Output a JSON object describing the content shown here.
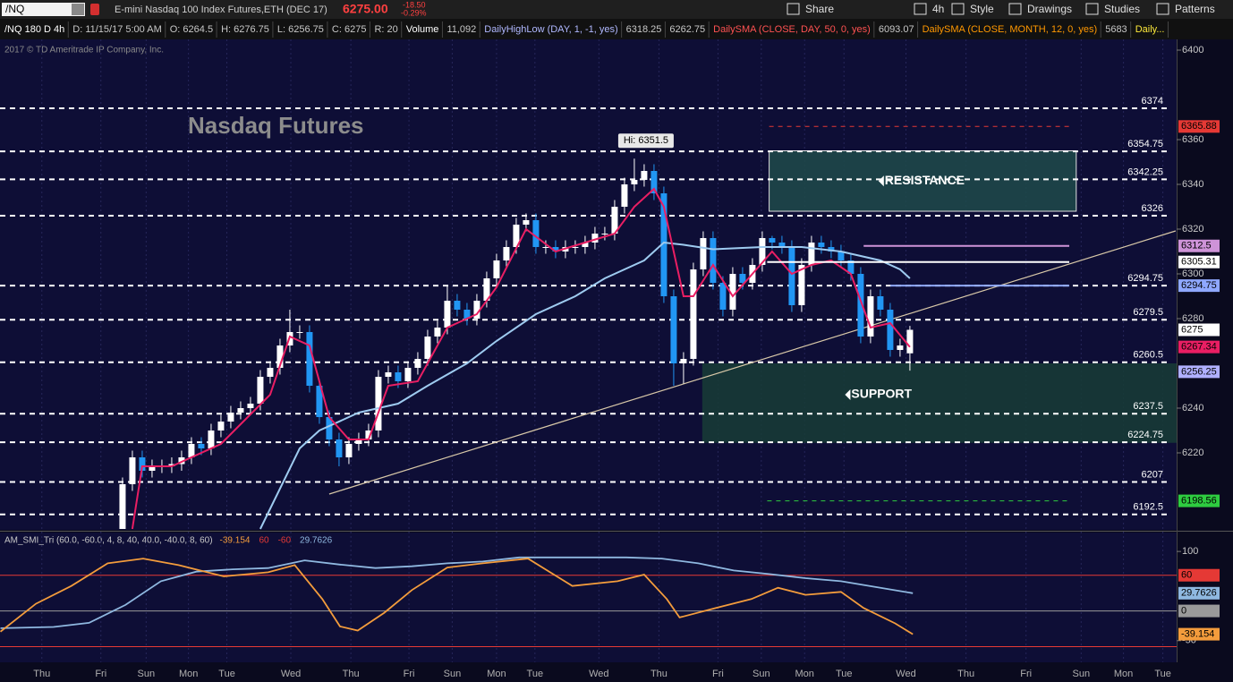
{
  "toolbar": {
    "symbol": "/NQ",
    "description": "E-mini Nasdaq 100 Index Futures,ETH (DEC 17)",
    "last": "6275.00",
    "change": "-18.50",
    "change_pct": "-0.29%",
    "buttons": [
      "Share",
      "4h",
      "Style",
      "Drawings",
      "Studies",
      "Patterns"
    ]
  },
  "legend_row": [
    {
      "text": "/NQ 180 D 4h",
      "color": "#ffffff"
    },
    {
      "text": "D: 11/15/17 5:00 AM",
      "color": "#c8c8c8"
    },
    {
      "text": "O: 6264.5",
      "color": "#c8c8c8"
    },
    {
      "text": "H: 6276.75",
      "color": "#c8c8c8"
    },
    {
      "text": "L: 6256.75",
      "color": "#c8c8c8"
    },
    {
      "text": "C: 6275",
      "color": "#c8c8c8"
    },
    {
      "text": "R: 20",
      "color": "#c8c8c8"
    },
    {
      "text": "Volume",
      "color": "#ffffff"
    },
    {
      "text": "11,092",
      "color": "#c8c8c8"
    },
    {
      "text": "DailyHighLow (DAY, 1, -1, yes)",
      "color": "#b0b8ff"
    },
    {
      "text": "6318.25",
      "color": "#c8c8c8"
    },
    {
      "text": "6262.75",
      "color": "#c8c8c8"
    },
    {
      "text": "DailySMA (CLOSE, DAY, 50, 0, yes)",
      "color": "#ff5252"
    },
    {
      "text": "6093.07",
      "color": "#c8c8c8"
    },
    {
      "text": "DailySMA (CLOSE, MONTH, 12, 0, yes)",
      "color": "#ff9800"
    },
    {
      "text": "5683",
      "color": "#c8c8c8"
    },
    {
      "text": "Daily...",
      "color": "#ffeb3b"
    }
  ],
  "copyright": "2017 © TD Ameritrade IP Company, Inc.",
  "chart_data": [
    {
      "type": "candlestick",
      "title": "Nasdaq Futures",
      "x": [
        0,
        1,
        2,
        3,
        4,
        5,
        6,
        7,
        8,
        9,
        10,
        11,
        12,
        13,
        14,
        15,
        16,
        17,
        18,
        19,
        20,
        21,
        22,
        23,
        24,
        25,
        26,
        27,
        28,
        29,
        30,
        31,
        32,
        33,
        34,
        35,
        36,
        37,
        38,
        39,
        40,
        41,
        42,
        43,
        44,
        45,
        46,
        47,
        48,
        49,
        50,
        51,
        52,
        53,
        54,
        55,
        56,
        57,
        58,
        59,
        60,
        61,
        62,
        63,
        64,
        65,
        66,
        67,
        68,
        69,
        70,
        71,
        72,
        73,
        74,
        75,
        76,
        77,
        78,
        79,
        80
      ],
      "open": [
        6186,
        6206,
        6218,
        6212,
        6214,
        6214,
        6215,
        6218,
        6224,
        6222,
        6230,
        6234,
        6238,
        6240,
        6242,
        6254,
        6258,
        6268,
        6274,
        6274,
        6250,
        6236,
        6226,
        6218,
        6224,
        6226,
        6230,
        6254,
        6256,
        6252,
        6258,
        6262,
        6272,
        6276,
        6288,
        6284,
        6280,
        6288,
        6298,
        6306,
        6312,
        6322,
        6324,
        6312,
        6312,
        6310,
        6312,
        6312,
        6314,
        6318,
        6318,
        6330,
        6340,
        6342,
        6346,
        6336,
        6290,
        6260,
        6262,
        6302,
        6316,
        6296,
        6284,
        6300,
        6296,
        6304,
        6316,
        6314,
        6312,
        6286,
        6304,
        6314,
        6312,
        6310,
        6306,
        6300,
        6272,
        6290,
        6284,
        6266,
        6264.5
      ],
      "high": [
        6209,
        6221,
        6221,
        6217,
        6217,
        6218,
        6221,
        6227,
        6227,
        6233,
        6237,
        6241,
        6243,
        6245,
        6257,
        6261,
        6271,
        6284,
        6277,
        6277,
        6253,
        6239,
        6229,
        6227,
        6229,
        6233,
        6257,
        6259,
        6259,
        6261,
        6265,
        6275,
        6279,
        6295,
        6291,
        6287,
        6291,
        6301,
        6309,
        6315,
        6325,
        6327,
        6327,
        6315,
        6315,
        6315,
        6315,
        6317,
        6321,
        6321,
        6333,
        6343,
        6351.5,
        6349,
        6349,
        6339,
        6293,
        6265,
        6305,
        6319,
        6319,
        6299,
        6303,
        6303,
        6307,
        6319,
        6317,
        6317,
        6315,
        6307,
        6317,
        6317,
        6315,
        6313,
        6309,
        6303,
        6293,
        6293,
        6287,
        6271,
        6276.75
      ],
      "low": [
        6186,
        6203,
        6209,
        6209,
        6211,
        6211,
        6212,
        6215,
        6219,
        6219,
        6227,
        6231,
        6235,
        6237,
        6239,
        6251,
        6255,
        6265,
        6271,
        6247,
        6233,
        6223,
        6214,
        6215,
        6221,
        6223,
        6227,
        6251,
        6249,
        6249,
        6255,
        6259,
        6269,
        6273,
        6281,
        6277,
        6277,
        6285,
        6295,
        6303,
        6309,
        6319,
        6309,
        6309,
        6307,
        6307,
        6309,
        6309,
        6311,
        6315,
        6315,
        6327,
        6337,
        6339,
        6333,
        6287,
        6250,
        6251,
        6259,
        6299,
        6293,
        6281,
        6281,
        6293,
        6293,
        6301,
        6311,
        6309,
        6283,
        6283,
        6301,
        6309,
        6307,
        6303,
        6297,
        6269,
        6269,
        6281,
        6263,
        6263,
        6256.75
      ],
      "close": [
        6206,
        6218,
        6212,
        6214,
        6214,
        6215,
        6218,
        6224,
        6222,
        6230,
        6234,
        6238,
        6240,
        6242,
        6254,
        6258,
        6268,
        6274,
        6274,
        6250,
        6236,
        6226,
        6218,
        6224,
        6226,
        6230,
        6254,
        6256,
        6252,
        6258,
        6262,
        6272,
        6276,
        6288,
        6284,
        6280,
        6288,
        6298,
        6306,
        6312,
        6322,
        6324,
        6312,
        6312,
        6310,
        6312,
        6312,
        6314,
        6318,
        6318,
        6330,
        6340,
        6342,
        6346,
        6336,
        6290,
        6260,
        6262,
        6302,
        6316,
        6296,
        6284,
        6300,
        6296,
        6304,
        6316,
        6314,
        6312,
        6286,
        6304,
        6314,
        6312,
        6310,
        6306,
        6300,
        6272,
        6290,
        6284,
        6266,
        6268,
        6275
      ],
      "up_color": "#ffffff",
      "down_color": "#2196f3",
      "xlim": [
        -12.45,
        107.1
      ],
      "ylim": [
        6185.6,
        6404.8
      ],
      "yticks": [
        6220,
        6240,
        6280,
        6300,
        6320,
        6340,
        6360,
        6400
      ],
      "xticks": [
        {
          "value": -8.2,
          "label": "Thu"
        },
        {
          "value": -2.2,
          "label": "Fri"
        },
        {
          "value": 2.4,
          "label": "Sun"
        },
        {
          "value": 6.7,
          "label": "Mon"
        },
        {
          "value": 10.6,
          "label": "Tue"
        },
        {
          "value": 17.1,
          "label": "Wed"
        },
        {
          "value": 23.2,
          "label": "Thu"
        },
        {
          "value": 29.1,
          "label": "Fri"
        },
        {
          "value": 33.5,
          "label": "Sun"
        },
        {
          "value": 38,
          "label": "Mon"
        },
        {
          "value": 41.9,
          "label": "Tue"
        },
        {
          "value": 48.4,
          "label": "Wed"
        },
        {
          "value": 54.5,
          "label": "Thu"
        },
        {
          "value": 60.5,
          "label": "Fri"
        },
        {
          "value": 64.9,
          "label": "Sun"
        },
        {
          "value": 69.3,
          "label": "Mon"
        },
        {
          "value": 73.3,
          "label": "Tue"
        },
        {
          "value": 79.6,
          "label": "Wed"
        },
        {
          "value": 85.7,
          "label": "Thu"
        },
        {
          "value": 91.8,
          "label": "Fri"
        },
        {
          "value": 97.4,
          "label": "Sun"
        },
        {
          "value": 101.7,
          "label": "Mon"
        },
        {
          "value": 105.7,
          "label": "Tue"
        }
      ],
      "levels": [
        6374,
        6354.75,
        6342.25,
        6326,
        6294.75,
        6279.5,
        6260.5,
        6237.5,
        6224.75,
        6207,
        6192.5
      ],
      "lines": [
        {
          "color": "#9ecbf0",
          "x": [
            14,
            18,
            20,
            24,
            28,
            31,
            35,
            38,
            42,
            46,
            49,
            53,
            55,
            57,
            60,
            65,
            69,
            73,
            77,
            79,
            80
          ],
          "values": [
            6186,
            6222,
            6230,
            6238,
            6242,
            6250,
            6260,
            6270,
            6282,
            6290,
            6298,
            6306,
            6314,
            6313,
            6311,
            6312,
            6312,
            6310,
            6306,
            6302,
            6298
          ]
        },
        {
          "color": "#e91e63",
          "x": [
            1,
            2,
            5,
            10,
            15,
            17,
            19,
            21,
            23,
            25,
            27,
            30,
            33,
            36,
            38,
            41,
            44,
            47,
            50,
            52,
            54,
            55,
            57,
            58,
            60,
            62,
            64,
            66,
            68,
            70,
            72,
            74,
            76,
            78,
            80
          ],
          "values": [
            6186,
            6214,
            6214,
            6224,
            6246,
            6272,
            6268,
            6236,
            6226,
            6226,
            6250,
            6252,
            6276,
            6282,
            6294,
            6320,
            6310,
            6314,
            6318,
            6330,
            6338,
            6330,
            6290,
            6290,
            6304,
            6290,
            6300,
            6310,
            6300,
            6304,
            6306,
            6300,
            6276,
            6278,
            6267.34
          ]
        }
      ],
      "trendline": {
        "color": "#d8c8a8",
        "x": [
          21,
          107
        ],
        "y": [
          6201.6,
          6319.2
        ]
      },
      "zones": [
        {
          "label": "RESISTANCE",
          "low": 6328,
          "high": 6355,
          "x0": 65.7,
          "x1": 96.9,
          "color": "#1e4a4a"
        },
        {
          "label": "SUPPORT",
          "low": 6224.5,
          "high": 6260,
          "x0": 58.9,
          "x1": 107.1,
          "color": "#173c36"
        }
      ],
      "high_label": {
        "text": "Hi: 6351.5",
        "x": 52,
        "y": 6351.5
      },
      "price_tags": [
        {
          "value": 6365.88,
          "color": "#e53935",
          "line_from": 65.7,
          "dash": true
        },
        {
          "value": 6312.5,
          "color": "#ce93d8",
          "line_from": 75.3,
          "dash": false
        },
        {
          "value": 6305.31,
          "color": "#ffffff",
          "line_from": 65.5,
          "dash": false
        },
        {
          "value": 6294.75,
          "color": "#8fa8ff",
          "line_from": 78,
          "dash": false
        },
        {
          "value": 6275,
          "color": "#ffffff"
        },
        {
          "value": 6267.34,
          "color": "#e91e63"
        },
        {
          "value": 6256.25,
          "color": "#b0b0ff"
        },
        {
          "value": 6198.56,
          "color": "#2ecc40",
          "line_from": 65.5,
          "dash": true
        }
      ]
    },
    {
      "type": "line",
      "title": "AM_SMI_Tri (60.0, -60.0, 4, 8, 40, 40.0, -40.0, 8, 60)",
      "header_values": [
        {
          "text": "-39.154",
          "color": "#f39c3c"
        },
        {
          "text": "60",
          "color": "#e53935"
        },
        {
          "text": "-60",
          "color": "#e53935"
        },
        {
          "text": "29.7626",
          "color": "#8fb8e0"
        }
      ],
      "xlim": [
        -12.45,
        107.1
      ],
      "ylim": [
        -86.4,
        131.8
      ],
      "yticks": [
        100,
        -50
      ],
      "series": [
        {
          "color": "#8fb8e0",
          "x": [
            -12.4,
            -7,
            -3.4,
            0.3,
            3.9,
            7.5,
            11.2,
            14.8,
            18.5,
            22.1,
            25.7,
            29.4,
            33,
            36.6,
            40.3,
            45.7,
            51.2,
            54.8,
            58.5,
            62.1,
            65.7,
            69.4,
            73,
            76.6,
            80.3
          ],
          "values": [
            -29,
            -27,
            -20,
            10,
            50,
            66,
            70,
            72,
            85,
            78,
            72,
            75,
            80,
            83,
            90,
            90,
            90,
            88,
            80,
            68,
            62,
            55,
            50,
            40,
            29.7626
          ]
        },
        {
          "color": "#f39c3c",
          "x": [
            -12.4,
            -8.8,
            -5.2,
            -1.5,
            2.1,
            5.7,
            10.3,
            14.8,
            17.5,
            20.3,
            22.1,
            23.9,
            26.6,
            29.4,
            33,
            36.6,
            41.2,
            45.7,
            50.3,
            53,
            55.3,
            56.6,
            60.3,
            63.9,
            66.6,
            69.4,
            73,
            75.3,
            78.5,
            80.3
          ],
          "values": [
            -35,
            12,
            42,
            80,
            88,
            77,
            58,
            65,
            77,
            20,
            -26,
            -33,
            -3,
            35,
            73,
            80,
            88,
            42,
            50,
            61,
            20,
            -11,
            5,
            20,
            39,
            27,
            32,
            5,
            -21,
            -39.154
          ]
        }
      ],
      "hlines": [
        {
          "value": 60,
          "color": "#e53935"
        },
        {
          "value": -60,
          "color": "#e53935"
        },
        {
          "value": 0,
          "color": "#9a9a9a"
        }
      ],
      "tags": [
        {
          "value": 60,
          "color": "#e53935"
        },
        {
          "value": 29.7626,
          "color": "#8fb8e0"
        },
        {
          "value": 0,
          "color": "#9a9a9a"
        },
        {
          "value": -39.154,
          "color": "#f39c3c"
        }
      ]
    }
  ]
}
